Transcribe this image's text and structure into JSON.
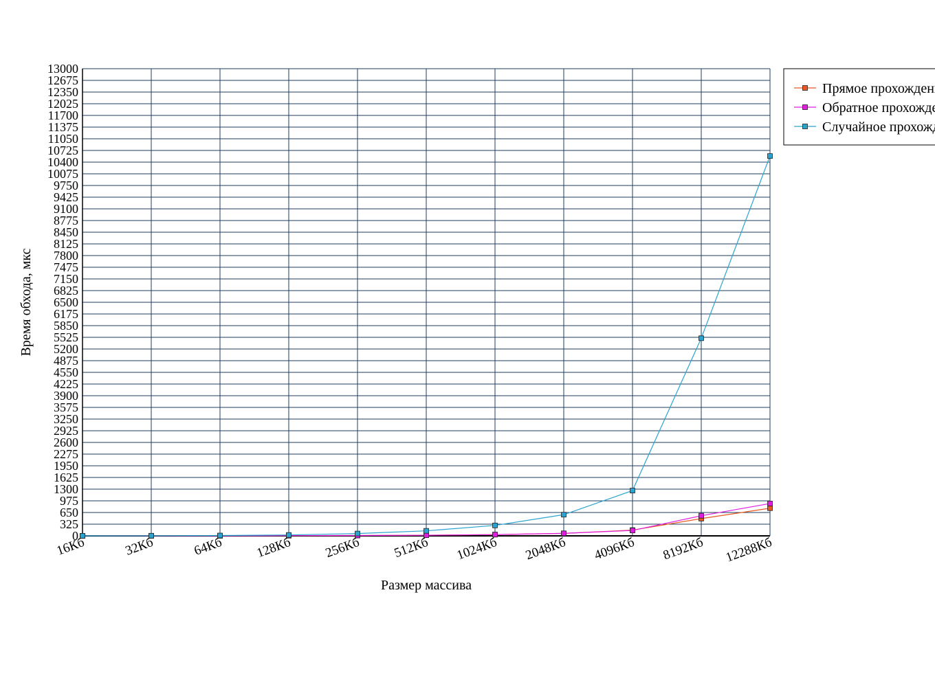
{
  "chart_data": {
    "type": "line",
    "xlabel": "Размер массива",
    "ylabel": "Время обхода, мкс",
    "categories": [
      "16Кб",
      "32Кб",
      "64Кб",
      "128Кб",
      "256Кб",
      "512Кб",
      "1024Кб",
      "2048Кб",
      "4096Кб",
      "8192Кб",
      "12288Кб"
    ],
    "ylim": [
      0,
      13000
    ],
    "yticks": [
      0,
      325,
      650,
      975,
      1300,
      1625,
      1950,
      2275,
      2600,
      2925,
      3250,
      3575,
      3900,
      4225,
      4550,
      4875,
      5200,
      5525,
      5850,
      6175,
      6500,
      6825,
      7150,
      7475,
      7800,
      8125,
      8450,
      8775,
      9100,
      9425,
      9750,
      10075,
      10400,
      10725,
      11050,
      11375,
      11700,
      12025,
      12350,
      12675,
      13000
    ],
    "grid": true,
    "legend_position": "top-right",
    "series": [
      {
        "name": "Прямое прохождение",
        "color": "#e8571f",
        "values": [
          1,
          2,
          3,
          6,
          10,
          18,
          35,
          70,
          160,
          480,
          770
        ]
      },
      {
        "name": "Обратное прохождение",
        "color": "#e01ee0",
        "values": [
          1,
          2,
          3,
          6,
          10,
          18,
          35,
          70,
          150,
          560,
          900
        ]
      },
      {
        "name": "Случайное прохождение",
        "color": "#2aa3cf",
        "values": [
          2,
          4,
          10,
          25,
          65,
          140,
          290,
          590,
          1260,
          5500,
          10570
        ]
      }
    ]
  }
}
